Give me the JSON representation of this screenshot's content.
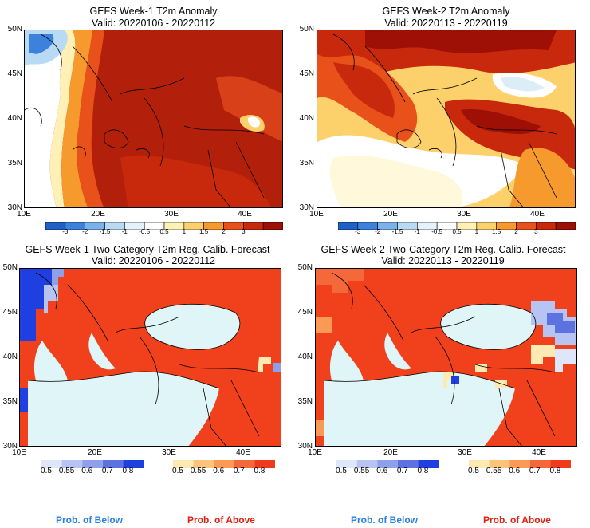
{
  "panels": [
    {
      "title": "GEFS Week-1 T2m Anomaly",
      "valid": "Valid: 20220106 - 20220112"
    },
    {
      "title": "GEFS Week-2 T2m Anomaly",
      "valid": "Valid: 20220113 - 20220119"
    },
    {
      "title": "GEFS Week-1 Two-Category T2m Reg. Calib. Forecast",
      "valid": "Valid: 20220106 - 20220112"
    },
    {
      "title": "GEFS Week-2 Two-Category T2m Reg. Calib. Forecast",
      "valid": "Valid: 20220113 - 20220119"
    }
  ],
  "lat_labels": [
    "50N",
    "45N",
    "40N",
    "35N",
    "30N"
  ],
  "lon_labels": [
    "10E",
    "20E",
    "30E",
    "40E"
  ],
  "anomaly_colorbar": {
    "labels": [
      "-3",
      "-2",
      "-1.5",
      "-1",
      "-0.5",
      "0.5",
      "1",
      "1.5",
      "2",
      "3"
    ],
    "colors": [
      "#1f5fc8",
      "#3c82dc",
      "#7cb2ec",
      "#b9daf5",
      "#e3f2fb",
      "#ffffff",
      "#fff1b5",
      "#fcd06a",
      "#f79a2e",
      "#e8511a",
      "#c8280c",
      "#9e0f05"
    ]
  },
  "prob_below_colorbar": {
    "labels": [
      "0.5",
      "0.55",
      "0.6",
      "0.7",
      "0.8"
    ],
    "colors": [
      "#dfe6fa",
      "#b7c3f2",
      "#8fa0ea",
      "#5b72e0",
      "#1f3fe0"
    ]
  },
  "prob_above_colorbar": {
    "labels": [
      "0.5",
      "0.55",
      "0.6",
      "0.7",
      "0.8"
    ],
    "colors": [
      "#fde9b2",
      "#fcc47a",
      "#fa9a55",
      "#f5683a",
      "#ef3a1c"
    ]
  },
  "prob_labels": {
    "below": "Prob. of Below",
    "above": "Prob. of Above"
  },
  "colors": {
    "below_text": "#2a7fe0",
    "above_text": "#e02010",
    "sea_light": "#dff5f7"
  }
}
